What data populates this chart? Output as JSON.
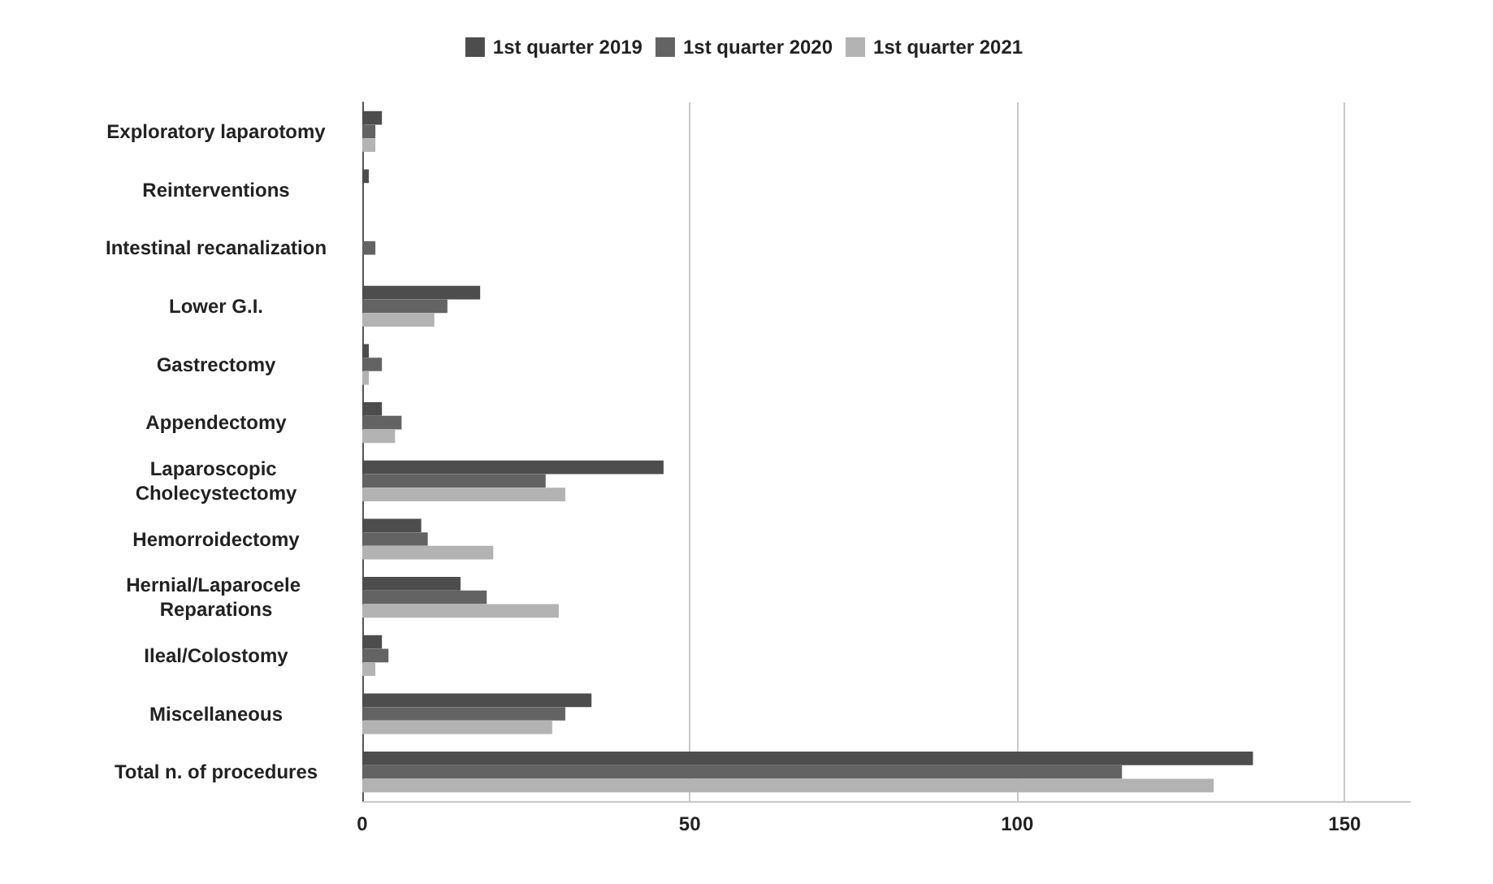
{
  "chart_data": {
    "type": "bar",
    "orientation": "horizontal",
    "categories": [
      "Exploratory laparotomy",
      "Reinterventions",
      "Intestinal recanalization",
      "Lower G.I.",
      "Gastrectomy",
      "Appendectomy",
      "Laparoscopic Cholecystectomy",
      "Hemorroidectomy",
      "Hernial/Laparocele Reparations",
      "Ileal/Colostomy",
      "Miscellaneous",
      "Total n. of procedures"
    ],
    "series": [
      {
        "name": "1st quarter 2019",
        "color": "#4d4d4d",
        "values": [
          3,
          1,
          0,
          18,
          1,
          3,
          46,
          9,
          15,
          3,
          35,
          136
        ]
      },
      {
        "name": "1st quarter 2020",
        "color": "#636363",
        "values": [
          2,
          0,
          2,
          13,
          3,
          6,
          28,
          10,
          19,
          4,
          31,
          116
        ]
      },
      {
        "name": "1st quarter 2021",
        "color": "#b3b3b3",
        "values": [
          2,
          0,
          0,
          11,
          1,
          5,
          31,
          20,
          30,
          2,
          29,
          130
        ]
      }
    ],
    "xlim": [
      0,
      160
    ],
    "xticks": [
      0,
      50,
      100,
      150
    ],
    "grid": "x",
    "legend": "top"
  }
}
